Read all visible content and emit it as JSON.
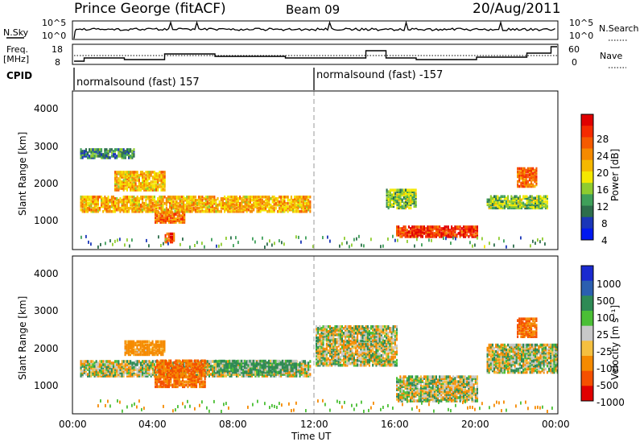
{
  "header": {
    "station": "Prince George (fitACF)",
    "beam": "Beam 09",
    "date": "20/Aug/2011"
  },
  "noise_panel": {
    "left_label": "N.Sky",
    "right_label": "N.Search",
    "left_ticks": [
      "10^5",
      "10^0"
    ],
    "right_ticks": [
      "10^5",
      "10^0"
    ]
  },
  "freq_panel": {
    "left_label_line1": "Freq.",
    "left_label_line2": "[MHz]",
    "left_ticks": [
      "18",
      "8"
    ],
    "right_label": "Nave",
    "right_ticks": [
      "60",
      "0"
    ]
  },
  "cpid_panel": {
    "label": "CPID",
    "segment1": "normalsound (fast) 157",
    "segment2": "normalsound (fast) -157"
  },
  "x_axis": {
    "label": "Time UT",
    "ticks": [
      "00:00",
      "04:00",
      "08:00",
      "12:00",
      "16:00",
      "20:00",
      "00:00"
    ]
  },
  "power_panel": {
    "ylabel": "Slant Range [km]",
    "yticks": [
      "4000",
      "3000",
      "2000",
      "1000"
    ],
    "colorbar_label": "Power [dB]",
    "colorbar_ticks": [
      "28",
      "24",
      "20",
      "16",
      "12",
      "8",
      "4"
    ],
    "colors": [
      "#0018f0",
      "#1a36b8",
      "#2d6e4c",
      "#3fa05a",
      "#8fcc2f",
      "#f4e800",
      "#f5b800",
      "#f58a00",
      "#f55a00",
      "#f52a00",
      "#e00000"
    ]
  },
  "velocity_panel": {
    "ylabel": "Slant Range [km]",
    "yticks": [
      "4000",
      "3000",
      "2000",
      "1000"
    ],
    "colorbar_label": "Velocity [m s⁻¹]",
    "colorbar_ticks": [
      "1000",
      "500",
      "100",
      "25",
      "-25",
      "-100",
      "-500",
      "-1000"
    ],
    "colors": [
      "#1a2ad0",
      "#2b5fb0",
      "#2e8a55",
      "#4bbf35",
      "#c8c8c8",
      "#f5c040",
      "#f58a00",
      "#f55000",
      "#e00000"
    ]
  },
  "chart_data": [
    {
      "type": "heatmap",
      "title": "Power",
      "xlabel": "Time UT",
      "ylabel": "Slant Range [km]",
      "xlim": [
        "00:00",
        "24:00"
      ],
      "ylim": [
        180,
        4600
      ],
      "clim": [
        0,
        30
      ],
      "units": "dB",
      "regions": [
        {
          "t": [
            0.3,
            11.7
          ],
          "range": [
            1200,
            1650
          ],
          "value": 18
        },
        {
          "t": [
            2.0,
            4.5
          ],
          "range": [
            1800,
            2300
          ],
          "value": 18
        },
        {
          "t": [
            0.3,
            3.0
          ],
          "range": [
            2700,
            2950
          ],
          "value": 8
        },
        {
          "t": [
            4.0,
            5.5
          ],
          "range": [
            900,
            1200
          ],
          "value": 22
        },
        {
          "t": [
            4.5,
            5.0
          ],
          "range": [
            350,
            600
          ],
          "value": 24
        },
        {
          "t": [
            15.5,
            17.0
          ],
          "range": [
            1300,
            1800
          ],
          "value": 12
        },
        {
          "t": [
            16.0,
            20.0
          ],
          "range": [
            500,
            800
          ],
          "value": 26
        },
        {
          "t": [
            20.5,
            23.5
          ],
          "range": [
            1300,
            1650
          ],
          "value": 12
        },
        {
          "t": [
            22.0,
            23.0
          ],
          "range": [
            1900,
            2400
          ],
          "value": 22
        }
      ]
    },
    {
      "type": "heatmap",
      "title": "Velocity",
      "xlabel": "Time UT",
      "ylabel": "Slant Range [km]",
      "xlim": [
        "00:00",
        "24:00"
      ],
      "ylim": [
        180,
        4600
      ],
      "clim": [
        -1000,
        1000
      ],
      "units": "m s-1",
      "regions": [
        {
          "t": [
            0.3,
            11.7
          ],
          "range": [
            1200,
            1650
          ],
          "value": 0
        },
        {
          "t": [
            4.0,
            6.5
          ],
          "range": [
            900,
            1650
          ],
          "value": -300
        },
        {
          "t": [
            2.5,
            4.5
          ],
          "range": [
            1800,
            2200
          ],
          "value": -150
        },
        {
          "t": [
            7.0,
            11.0
          ],
          "range": [
            1300,
            1650
          ],
          "value": 100
        },
        {
          "t": [
            12.0,
            16.0
          ],
          "range": [
            1500,
            2600
          ],
          "value": 0
        },
        {
          "t": [
            16.0,
            20.0
          ],
          "range": [
            500,
            1200
          ],
          "value": 0
        },
        {
          "t": [
            20.5,
            24.0
          ],
          "range": [
            1300,
            2100
          ],
          "value": 0
        },
        {
          "t": [
            22.0,
            23.0
          ],
          "range": [
            2300,
            2800
          ],
          "value": -300
        }
      ]
    }
  ]
}
